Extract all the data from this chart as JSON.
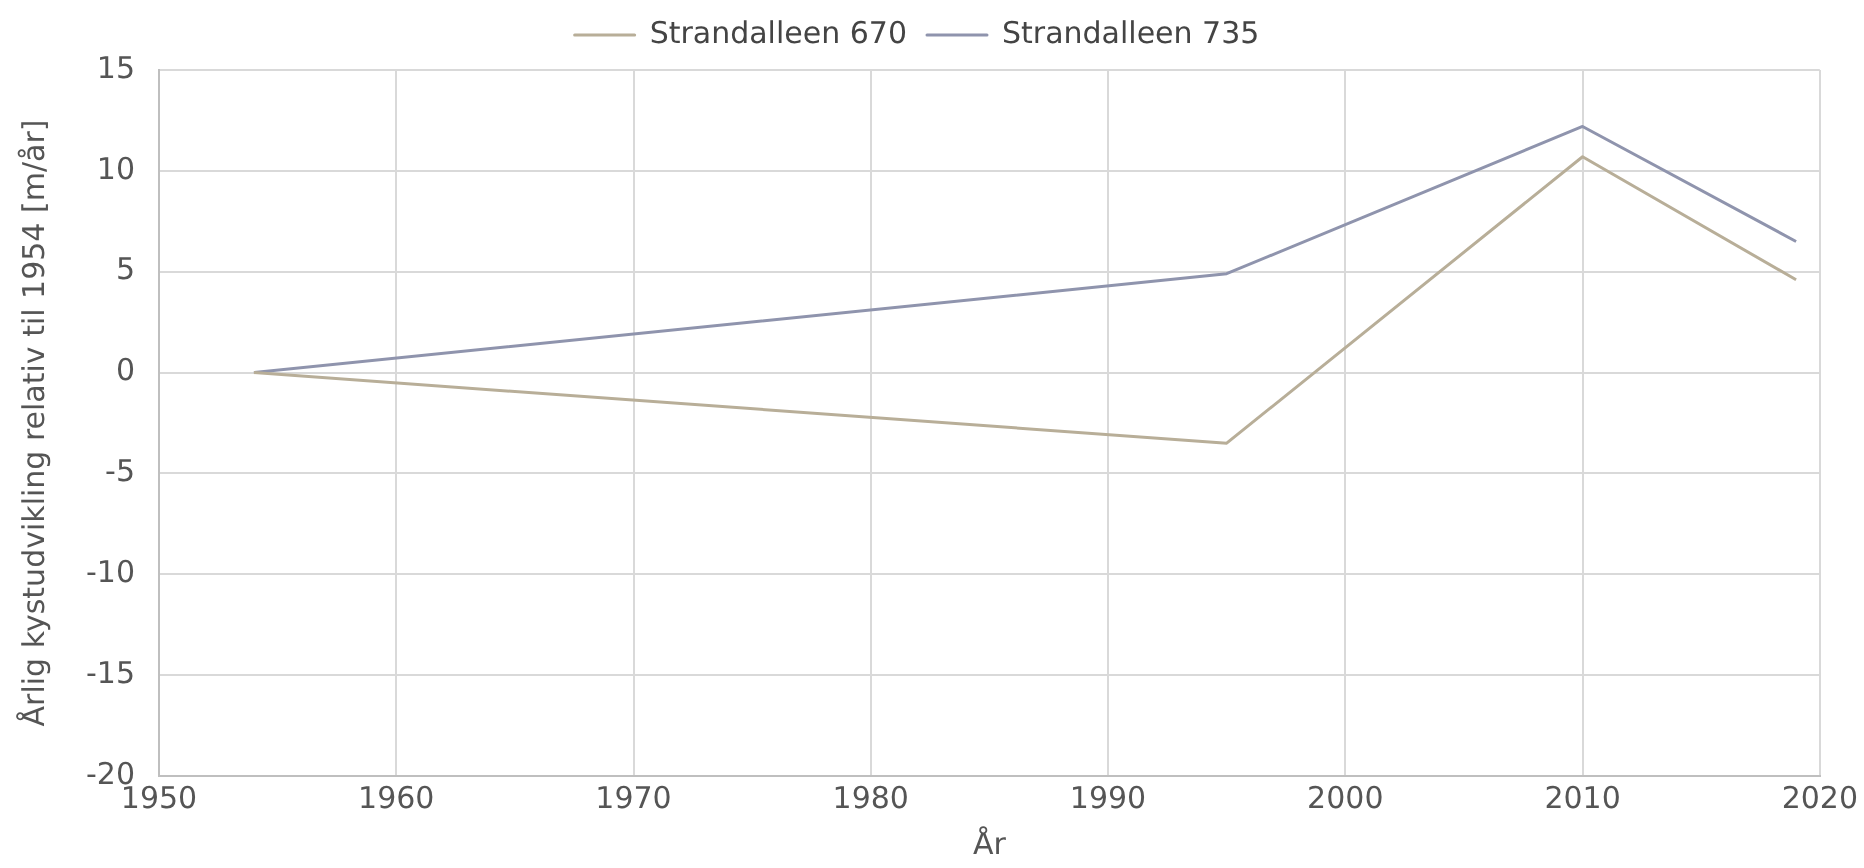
{
  "chart_data": {
    "type": "line",
    "xlabel": "År",
    "ylabel": "Årlig kystudvikling relativ til 1954 [m/år]",
    "x": [
      1954,
      1995,
      2010,
      2019
    ],
    "series": [
      {
        "name": "Strandalleen 670",
        "color": "#b8ae98",
        "values": [
          0,
          -3.5,
          10.7,
          4.6
        ]
      },
      {
        "name": "Strandalleen 735",
        "color": "#8f94ad",
        "values": [
          0,
          4.9,
          12.2,
          6.5
        ]
      }
    ],
    "xlim": [
      1950,
      2020
    ],
    "xticks": [
      1950,
      1960,
      1970,
      1980,
      1990,
      2000,
      2010,
      2020
    ],
    "ylim": [
      -20,
      15
    ],
    "yticks": [
      -20,
      -15,
      -10,
      -5,
      0,
      5,
      10,
      15
    ],
    "grid": true,
    "legend": "top",
    "marker": "none",
    "line_style": "solid"
  }
}
